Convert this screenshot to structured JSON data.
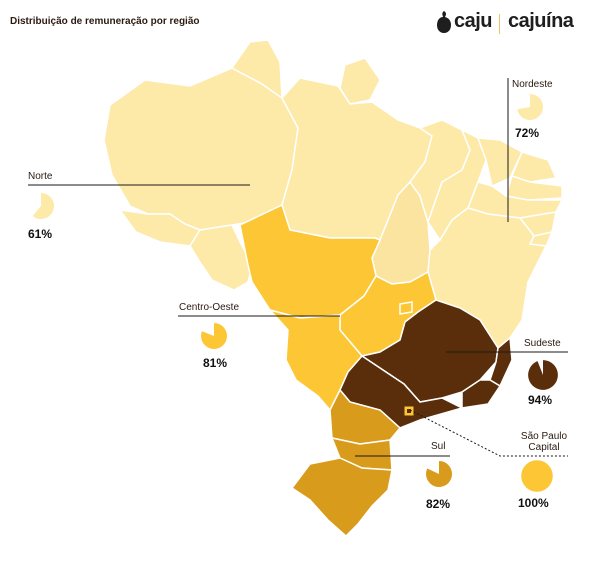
{
  "title": "Distribuição de remuneração por região",
  "brand": {
    "primary": "caju",
    "secondary": "cajuína"
  },
  "colors": {
    "light": "#fde9a8",
    "light_border": "#ffffff",
    "pale_state": "#fbe3a0",
    "medium": "#fcc635",
    "dark": "#5a2e0a",
    "sul": "#d99b1b",
    "capital": "#fcc635"
  },
  "regions": [
    {
      "name": "Norte",
      "percent": 61,
      "label": "61%"
    },
    {
      "name": "Nordeste",
      "percent": 72,
      "label": "72%"
    },
    {
      "name": "Centro-Oeste",
      "percent": 81,
      "label": "81%"
    },
    {
      "name": "Sudeste",
      "percent": 94,
      "label": "94%"
    },
    {
      "name": "Sul",
      "percent": 82,
      "label": "82%"
    },
    {
      "name": "São Paulo Capital",
      "percent": 100,
      "label": "100%"
    }
  ]
}
